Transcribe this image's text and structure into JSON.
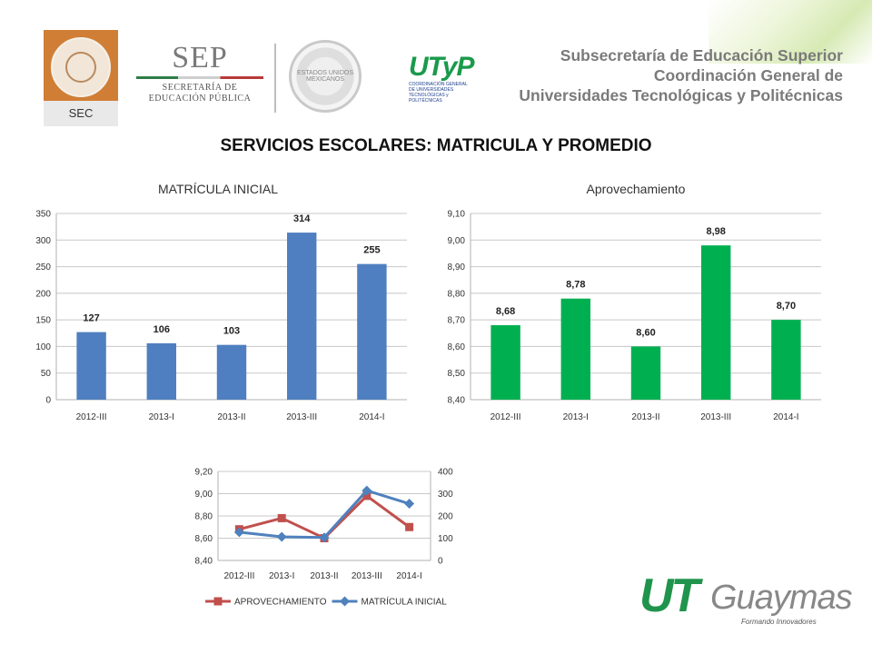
{
  "header": {
    "sec_label": "SEC",
    "sep_big": "SEP",
    "sep_line1": "SECRETARÍA DE",
    "sep_line2": "EDUCACIÓN PÚBLICA",
    "escudo_text": "ESTADOS UNIDOS MEXICANOS",
    "utp_big": "UTyP",
    "utp_small": "COORDINACIÓN GENERAL DE UNIVERSIDADES TECNOLÓGICAS y POLITÉCNICAS",
    "line1": "Subsecretaría de Educación Superior",
    "line2": "Coordinación General de",
    "line3": "Universidades Tecnológicas y Politécnicas"
  },
  "main_title": "SERVICIOS ESCOLARES:  MATRICULA Y PROMEDIO",
  "chart_data": [
    {
      "type": "bar",
      "title": "MATRÍCULA INICIAL",
      "categories": [
        "2012-III",
        "2013-I",
        "2013-II",
        "2013-III",
        "2014-I"
      ],
      "values": [
        127,
        106,
        103,
        314,
        255
      ],
      "value_labels": [
        "127",
        "106",
        "103",
        "314",
        "255"
      ],
      "ylim": [
        0,
        350
      ],
      "yticks": [
        "0",
        "50",
        "100",
        "150",
        "200",
        "250",
        "300",
        "350"
      ],
      "color": "#4f7fc0",
      "grid": true
    },
    {
      "type": "bar",
      "title": "Aprovechamiento",
      "categories": [
        "2012-III",
        "2013-I",
        "2013-II",
        "2013-III",
        "2014-I"
      ],
      "values": [
        8.68,
        8.78,
        8.6,
        8.98,
        8.7
      ],
      "value_labels": [
        "8,68",
        "8,78",
        "8,60",
        "8,98",
        "8,70"
      ],
      "ylim": [
        8.4,
        9.1
      ],
      "yticks": [
        "8,40",
        "8,50",
        "8,60",
        "8,70",
        "8,80",
        "8,90",
        "9,00",
        "9,10"
      ],
      "color": "#00b050",
      "grid": true
    },
    {
      "type": "line",
      "categories": [
        "2012-III",
        "2013-I",
        "2013-II",
        "2013-III",
        "2014-I"
      ],
      "series": [
        {
          "name": "APROVECHAMIENTO",
          "values": [
            8.68,
            8.78,
            8.6,
            8.98,
            8.7
          ],
          "axis": "left",
          "color": "#c0504d",
          "marker": "square"
        },
        {
          "name": "MATRÍCULA INICIAL",
          "values": [
            127,
            106,
            103,
            314,
            255
          ],
          "axis": "right",
          "color": "#4f81bd",
          "marker": "diamond"
        }
      ],
      "ylim_left": [
        8.4,
        9.2
      ],
      "yticks_left": [
        "8,40",
        "8,60",
        "8,80",
        "9,00",
        "9,20"
      ],
      "ylim_right": [
        0,
        400
      ],
      "yticks_right": [
        "0",
        "100",
        "200",
        "300",
        "400"
      ],
      "legend": "bottom",
      "grid": true
    }
  ],
  "footer_logo": {
    "ut": "UT",
    "name": "Guaymas",
    "tagline": "Formando          Innovadores"
  }
}
